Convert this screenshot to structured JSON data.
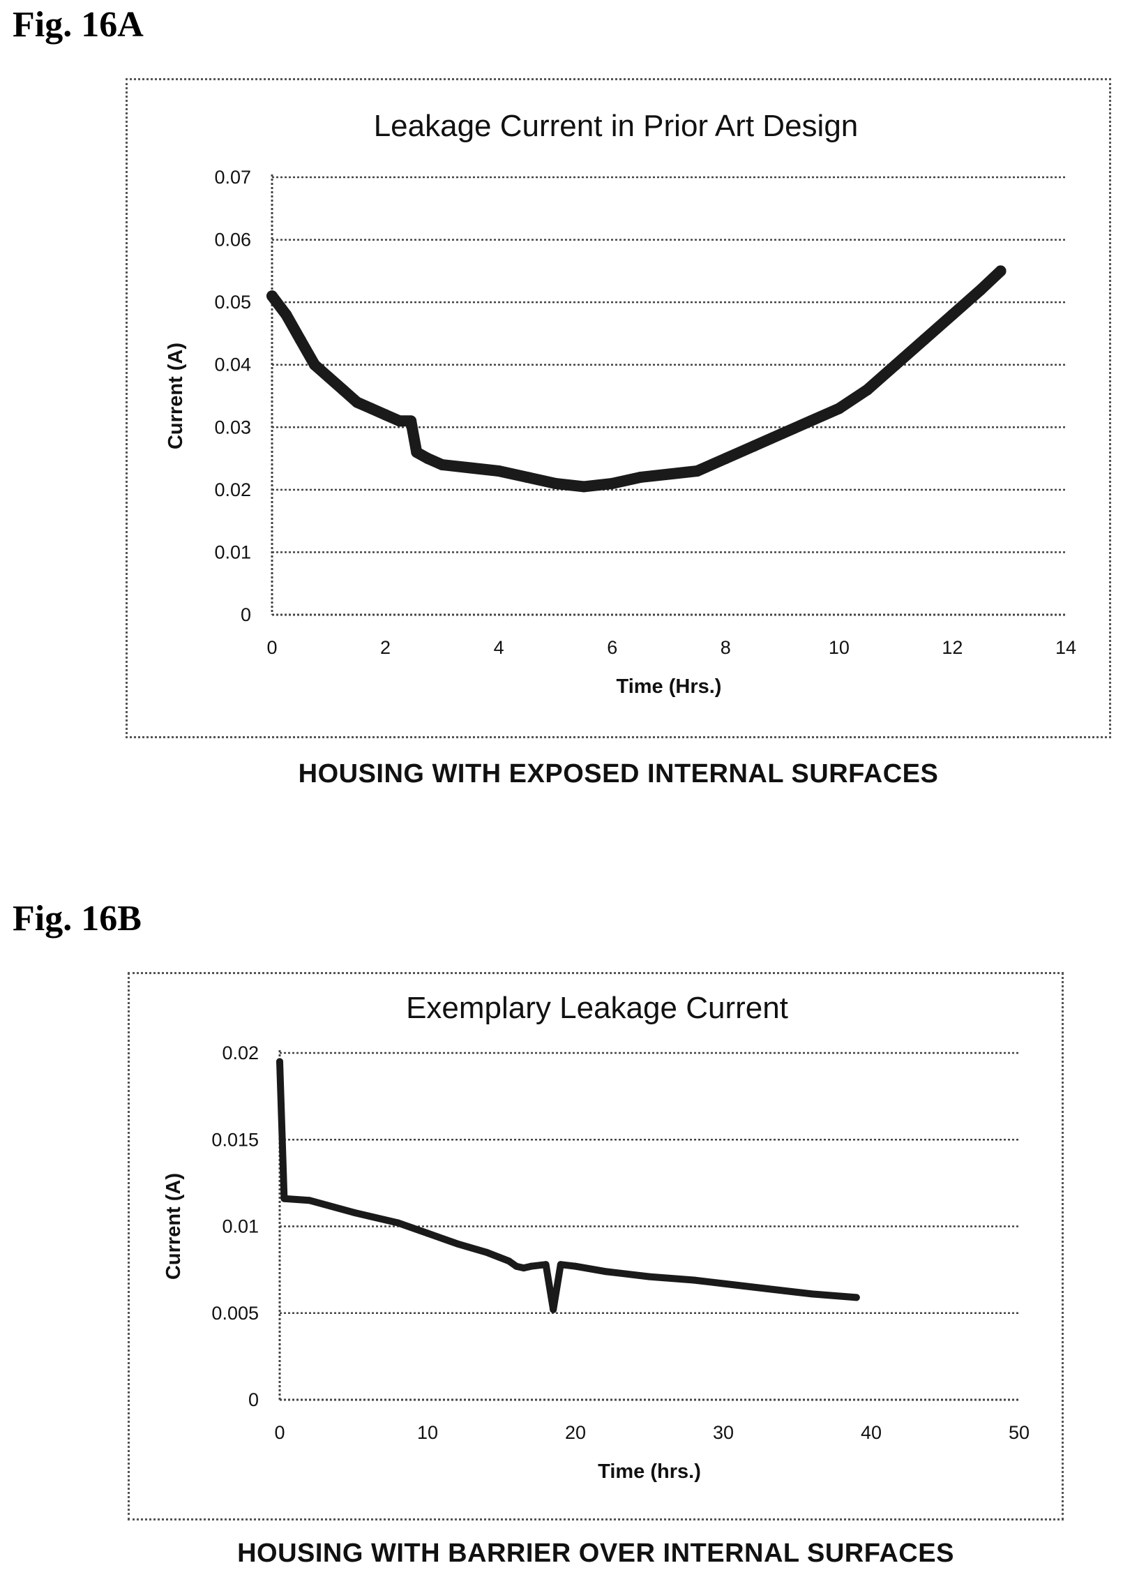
{
  "fig_a": {
    "label": "Fig. 16A",
    "caption": "HOUSING WITH EXPOSED INTERNAL SURFACES"
  },
  "fig_b": {
    "label": "Fig. 16B",
    "caption": "HOUSING WITH BARRIER OVER INTERNAL SURFACES"
  },
  "chart_data": [
    {
      "type": "line",
      "title": "Leakage Current in Prior Art Design",
      "xlabel": "Time (Hrs.)",
      "ylabel": "Current (A)",
      "xlim": [
        0,
        14
      ],
      "ylim": [
        0,
        0.07
      ],
      "x_ticks": [
        "0",
        "2",
        "4",
        "6",
        "8",
        "10",
        "12",
        "14"
      ],
      "y_ticks": [
        "0",
        "0.01",
        "0.02",
        "0.03",
        "0.04",
        "0.05",
        "0.06",
        "0.07"
      ],
      "grid": true,
      "line_color": "#1a1a1a",
      "series": [
        {
          "x": [
            0,
            0.25,
            0.5,
            0.75,
            1.0,
            1.25,
            1.5,
            1.75,
            2.0,
            2.25,
            2.45,
            2.55,
            2.75,
            3.0,
            3.5,
            4.0,
            4.5,
            5.0,
            5.5,
            6.0,
            6.5,
            7.0,
            7.5,
            8.0,
            8.5,
            9.0,
            9.5,
            10.0,
            10.5,
            11.0,
            11.5,
            12.0,
            12.5,
            12.85
          ],
          "y": [
            0.051,
            0.048,
            0.044,
            0.04,
            0.038,
            0.036,
            0.034,
            0.033,
            0.032,
            0.031,
            0.031,
            0.026,
            0.025,
            0.024,
            0.0235,
            0.023,
            0.022,
            0.021,
            0.0205,
            0.021,
            0.022,
            0.0225,
            0.023,
            0.025,
            0.027,
            0.029,
            0.031,
            0.033,
            0.036,
            0.04,
            0.044,
            0.048,
            0.052,
            0.055
          ]
        }
      ]
    },
    {
      "type": "line",
      "title": "Exemplary Leakage Current",
      "xlabel": "Time (hrs.)",
      "ylabel": "Current (A)",
      "xlim": [
        0,
        50
      ],
      "ylim": [
        0,
        0.02
      ],
      "x_ticks": [
        "0",
        "10",
        "20",
        "30",
        "40",
        "50"
      ],
      "y_ticks": [
        "0",
        "0.005",
        "0.01",
        "0.015",
        "0.02"
      ],
      "grid": true,
      "line_color": "#1a1a1a",
      "series": [
        {
          "x": [
            0,
            0.3,
            2,
            5,
            8,
            10,
            12,
            14,
            15.5,
            16,
            16.5,
            17,
            18,
            18.5,
            19,
            20,
            22,
            25,
            28,
            30,
            33,
            36,
            39
          ],
          "y": [
            0.0195,
            0.0116,
            0.0115,
            0.0108,
            0.0102,
            0.0096,
            0.009,
            0.0085,
            0.008,
            0.0077,
            0.0076,
            0.0077,
            0.0078,
            0.0052,
            0.0078,
            0.0077,
            0.0074,
            0.0071,
            0.0069,
            0.0067,
            0.0064,
            0.0061,
            0.0059
          ]
        }
      ]
    }
  ]
}
